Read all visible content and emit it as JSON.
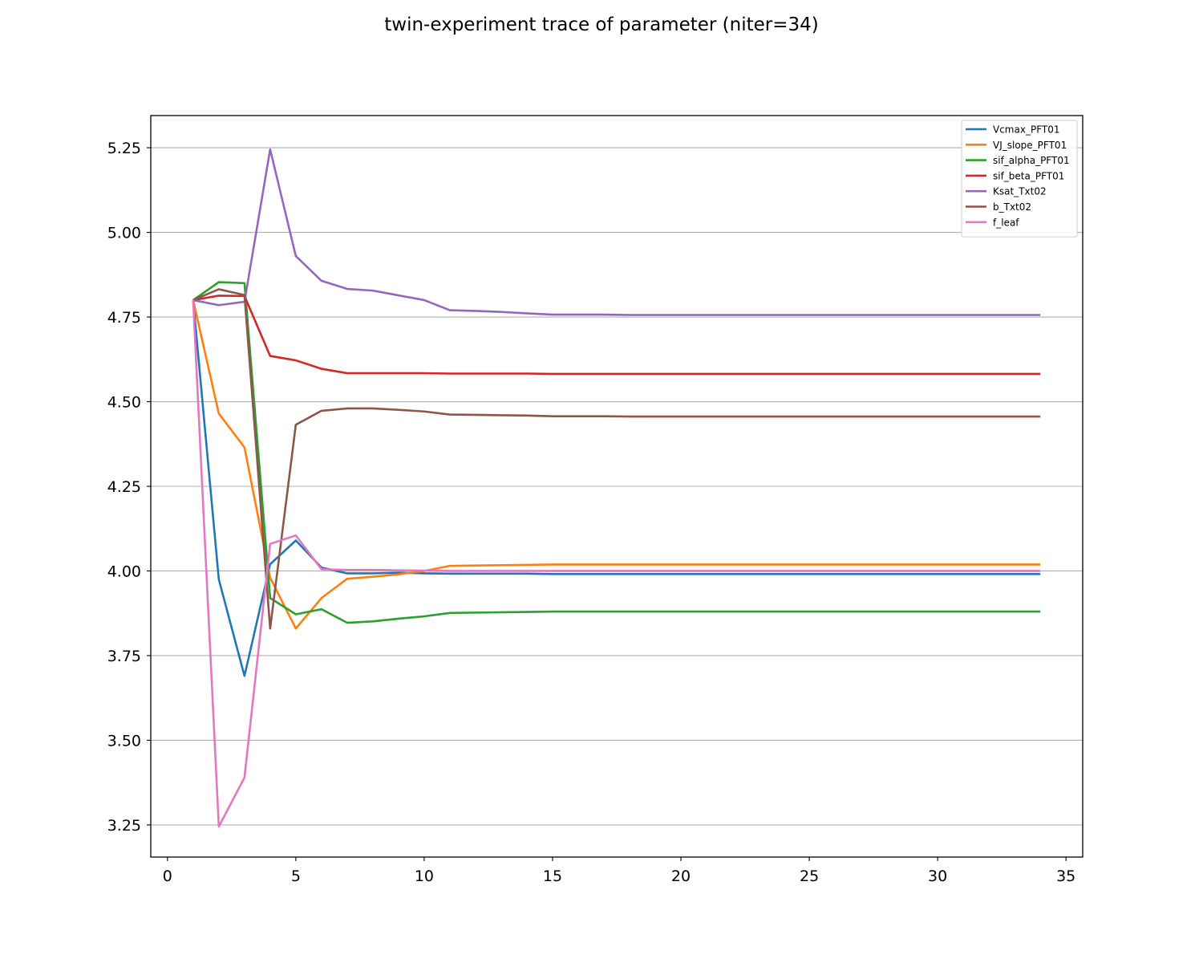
{
  "chart_data": {
    "type": "line",
    "title": "twin-experiment trace of parameter (niter=34)",
    "xlabel": "",
    "ylabel": "",
    "xlim": [
      -0.65,
      35.65
    ],
    "ylim": [
      3.155,
      5.345
    ],
    "xticks": [
      0,
      5,
      10,
      15,
      20,
      25,
      30,
      35
    ],
    "yticks": [
      3.25,
      3.5,
      3.75,
      4.0,
      4.25,
      4.5,
      4.75,
      5.0,
      5.25
    ],
    "xtick_labels": [
      "0",
      "5",
      "10",
      "15",
      "20",
      "25",
      "30",
      "35"
    ],
    "ytick_labels": [
      "3.25",
      "3.50",
      "3.75",
      "4.00",
      "4.25",
      "4.50",
      "4.75",
      "5.00",
      "5.25"
    ],
    "grid": "y",
    "legend_position": "top-right",
    "x": [
      1,
      2,
      3,
      4,
      5,
      6,
      7,
      8,
      9,
      10,
      11,
      12,
      13,
      14,
      15,
      16,
      17,
      18,
      19,
      20,
      21,
      22,
      23,
      24,
      25,
      26,
      27,
      28,
      29,
      30,
      31,
      32,
      33,
      34
    ],
    "series": [
      {
        "name": "Vcmax_PFT01",
        "color": "#1f77b4",
        "values": [
          4.8,
          3.975,
          3.69,
          4.02,
          4.09,
          4.01,
          3.993,
          3.993,
          3.995,
          3.993,
          3.992,
          3.992,
          3.992,
          3.992,
          3.991,
          3.991,
          3.991,
          3.991,
          3.991,
          3.991,
          3.991,
          3.991,
          3.991,
          3.991,
          3.991,
          3.991,
          3.991,
          3.991,
          3.991,
          3.991,
          3.991,
          3.991,
          3.991,
          3.991
        ]
      },
      {
        "name": "VJ_slope_PFT01",
        "color": "#ff7f0e",
        "values": [
          4.8,
          4.465,
          4.365,
          3.98,
          3.83,
          3.92,
          3.977,
          3.983,
          3.99,
          4.0,
          4.015,
          4.016,
          4.017,
          4.018,
          4.019,
          4.019,
          4.019,
          4.019,
          4.019,
          4.019,
          4.019,
          4.019,
          4.019,
          4.019,
          4.019,
          4.019,
          4.019,
          4.019,
          4.019,
          4.019,
          4.019,
          4.019,
          4.019,
          4.019
        ]
      },
      {
        "name": "sif_alpha_PFT01",
        "color": "#2ca02c",
        "values": [
          4.8,
          4.853,
          4.85,
          3.92,
          3.872,
          3.887,
          3.847,
          3.851,
          3.859,
          3.866,
          3.876,
          3.877,
          3.878,
          3.879,
          3.88,
          3.88,
          3.88,
          3.88,
          3.88,
          3.88,
          3.88,
          3.88,
          3.88,
          3.88,
          3.88,
          3.88,
          3.88,
          3.88,
          3.88,
          3.88,
          3.88,
          3.88,
          3.88,
          3.88
        ]
      },
      {
        "name": "sif_beta_PFT01",
        "color": "#d62728",
        "values": [
          4.8,
          4.813,
          4.812,
          4.635,
          4.622,
          4.597,
          4.584,
          4.584,
          4.584,
          4.584,
          4.583,
          4.583,
          4.583,
          4.583,
          4.582,
          4.582,
          4.582,
          4.582,
          4.582,
          4.582,
          4.582,
          4.582,
          4.582,
          4.582,
          4.582,
          4.582,
          4.582,
          4.582,
          4.582,
          4.582,
          4.582,
          4.582,
          4.582,
          4.582
        ]
      },
      {
        "name": "Ksat_Txt02",
        "color": "#9467bd",
        "values": [
          4.8,
          4.785,
          4.795,
          5.245,
          4.93,
          4.857,
          4.833,
          4.828,
          4.814,
          4.8,
          4.77,
          4.768,
          4.765,
          4.761,
          4.757,
          4.757,
          4.757,
          4.756,
          4.756,
          4.756,
          4.756,
          4.756,
          4.756,
          4.756,
          4.756,
          4.756,
          4.756,
          4.756,
          4.756,
          4.756,
          4.756,
          4.756,
          4.756,
          4.756
        ]
      },
      {
        "name": "b_Txt02",
        "color": "#8c564b",
        "values": [
          4.8,
          4.832,
          4.815,
          3.83,
          4.432,
          4.473,
          4.48,
          4.48,
          4.476,
          4.471,
          4.462,
          4.461,
          4.46,
          4.459,
          4.457,
          4.457,
          4.457,
          4.456,
          4.456,
          4.456,
          4.456,
          4.456,
          4.456,
          4.456,
          4.456,
          4.456,
          4.456,
          4.456,
          4.456,
          4.456,
          4.456,
          4.456,
          4.456,
          4.456
        ]
      },
      {
        "name": "f_leaf",
        "color": "#e377c2",
        "values": [
          4.8,
          3.245,
          3.39,
          4.08,
          4.105,
          4.005,
          4.003,
          4.003,
          4.002,
          4.001,
          4.0,
          4.0,
          4.0,
          4.0,
          4.0,
          4.0,
          4.0,
          4.0,
          4.0,
          4.0,
          4.0,
          4.0,
          4.0,
          4.0,
          4.0,
          4.0,
          4.0,
          4.0,
          4.0,
          4.0,
          4.0,
          4.0,
          4.0,
          4.0
        ]
      }
    ]
  }
}
